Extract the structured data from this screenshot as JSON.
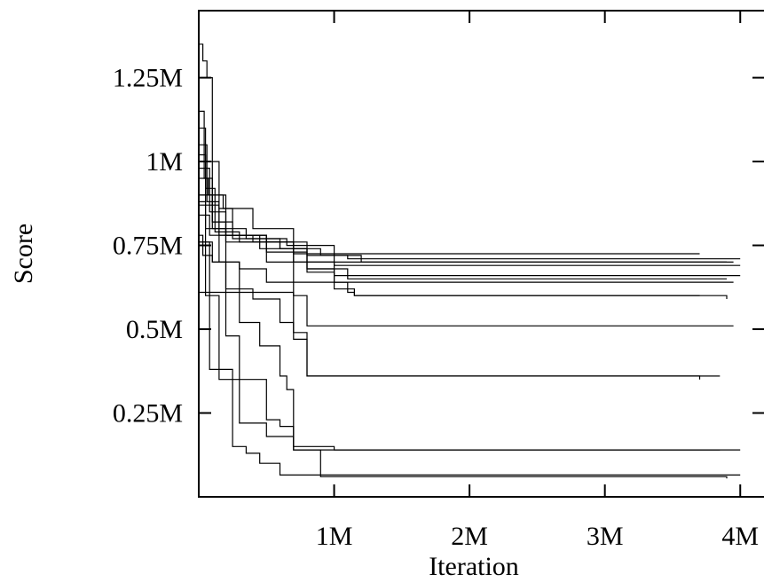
{
  "chart_data": {
    "type": "line",
    "title": "",
    "xlabel": "Iteration",
    "ylabel": "Score",
    "xlim": [
      0,
      4300000
    ],
    "ylim": [
      0,
      1450000
    ],
    "x_ticks": [
      {
        "value": 1000000,
        "label": "1M"
      },
      {
        "value": 2000000,
        "label": "2M"
      },
      {
        "value": 3000000,
        "label": "3M"
      },
      {
        "value": 4000000,
        "label": "4M"
      }
    ],
    "y_ticks": [
      {
        "value": 250000,
        "label": "0.25M"
      },
      {
        "value": 500000,
        "label": "0.5M"
      },
      {
        "value": 750000,
        "label": "0.75M"
      },
      {
        "value": 1000000,
        "label": "1M"
      },
      {
        "value": 1250000,
        "label": "1.25M"
      }
    ],
    "grid": false,
    "legend": "none",
    "line_color": "#000000",
    "series": [
      {
        "x": [
          0,
          30000,
          60000,
          100000,
          150000,
          250000,
          400000,
          700000,
          3700000
        ],
        "y": [
          1350000,
          1300000,
          1250000,
          1000000,
          860000,
          780000,
          760000,
          725000,
          725000
        ]
      },
      {
        "x": [
          0,
          40000,
          100000,
          200000,
          500000,
          800000,
          1100000,
          4000000
        ],
        "y": [
          1150000,
          950000,
          820000,
          780000,
          760000,
          720000,
          710000,
          710000
        ]
      },
      {
        "x": [
          0,
          50000,
          120000,
          300000,
          600000,
          900000,
          1200000,
          3950000
        ],
        "y": [
          1100000,
          920000,
          790000,
          760000,
          740000,
          720000,
          700000,
          700000
        ]
      },
      {
        "x": [
          0,
          60000,
          150000,
          350000,
          650000,
          1000000,
          4000000
        ],
        "y": [
          1050000,
          880000,
          800000,
          770000,
          750000,
          690000,
          690000
        ]
      },
      {
        "x": [
          0,
          80000,
          200000,
          450000,
          700000,
          3900000
        ],
        "y": [
          980000,
          850000,
          780000,
          740000,
          700000,
          700000
        ]
      },
      {
        "x": [
          0,
          70000,
          180000,
          400000,
          700000,
          800000,
          1000000,
          4000000
        ],
        "y": [
          950000,
          900000,
          860000,
          800000,
          740000,
          670000,
          660000,
          660000
        ]
      },
      {
        "x": [
          0,
          100000,
          250000,
          600000,
          800000,
          1100000,
          3900000
        ],
        "y": [
          900000,
          820000,
          770000,
          740000,
          680000,
          650000,
          650000
        ]
      },
      {
        "x": [
          0,
          50000,
          150000,
          500000,
          700000,
          1000000,
          1100000,
          1150000,
          2300000,
          3900000
        ],
        "y": [
          880000,
          800000,
          780000,
          760000,
          700000,
          640000,
          610000,
          600000,
          600000,
          590000
        ]
      },
      {
        "x": [
          0,
          80000,
          200000,
          500000,
          800000,
          1000000,
          1150000,
          3700000
        ],
        "y": [
          840000,
          780000,
          760000,
          730000,
          680000,
          620000,
          600000,
          600000
        ]
      },
      {
        "x": [
          0,
          30000,
          100000,
          300000,
          500000,
          3950000
        ],
        "y": [
          780000,
          720000,
          700000,
          680000,
          640000,
          640000
        ]
      },
      {
        "x": [
          0,
          100000,
          400000,
          700000,
          800000,
          3950000
        ],
        "y": [
          610000,
          610000,
          610000,
          600000,
          510000,
          510000
        ]
      },
      {
        "x": [
          0,
          100000,
          200000,
          400000,
          600000,
          700000,
          800000,
          3850000
        ],
        "y": [
          760000,
          700000,
          620000,
          590000,
          520000,
          490000,
          360000,
          360000
        ]
      },
      {
        "x": [
          0,
          200000,
          500000,
          700000,
          800000,
          3700000
        ],
        "y": [
          900000,
          780000,
          700000,
          470000,
          360000,
          350000
        ]
      },
      {
        "x": [
          0,
          150000,
          300000,
          450000,
          600000,
          650000,
          700000,
          3850000
        ],
        "y": [
          870000,
          700000,
          520000,
          450000,
          360000,
          320000,
          140000,
          140000
        ]
      },
      {
        "x": [
          0,
          100000,
          200000,
          300000,
          500000,
          600000,
          700000,
          1000000,
          4000000
        ],
        "y": [
          1000000,
          800000,
          480000,
          350000,
          230000,
          210000,
          150000,
          140000,
          140000
        ]
      },
      {
        "x": [
          0,
          50000,
          150000,
          300000,
          500000,
          700000,
          900000,
          1000000,
          3900000
        ],
        "y": [
          1020000,
          600000,
          350000,
          220000,
          180000,
          140000,
          60000,
          60000,
          55000
        ]
      },
      {
        "x": [
          0,
          80000,
          250000,
          350000,
          450000,
          600000,
          4000000
        ],
        "y": [
          760000,
          380000,
          150000,
          130000,
          100000,
          65000,
          65000
        ]
      }
    ]
  }
}
